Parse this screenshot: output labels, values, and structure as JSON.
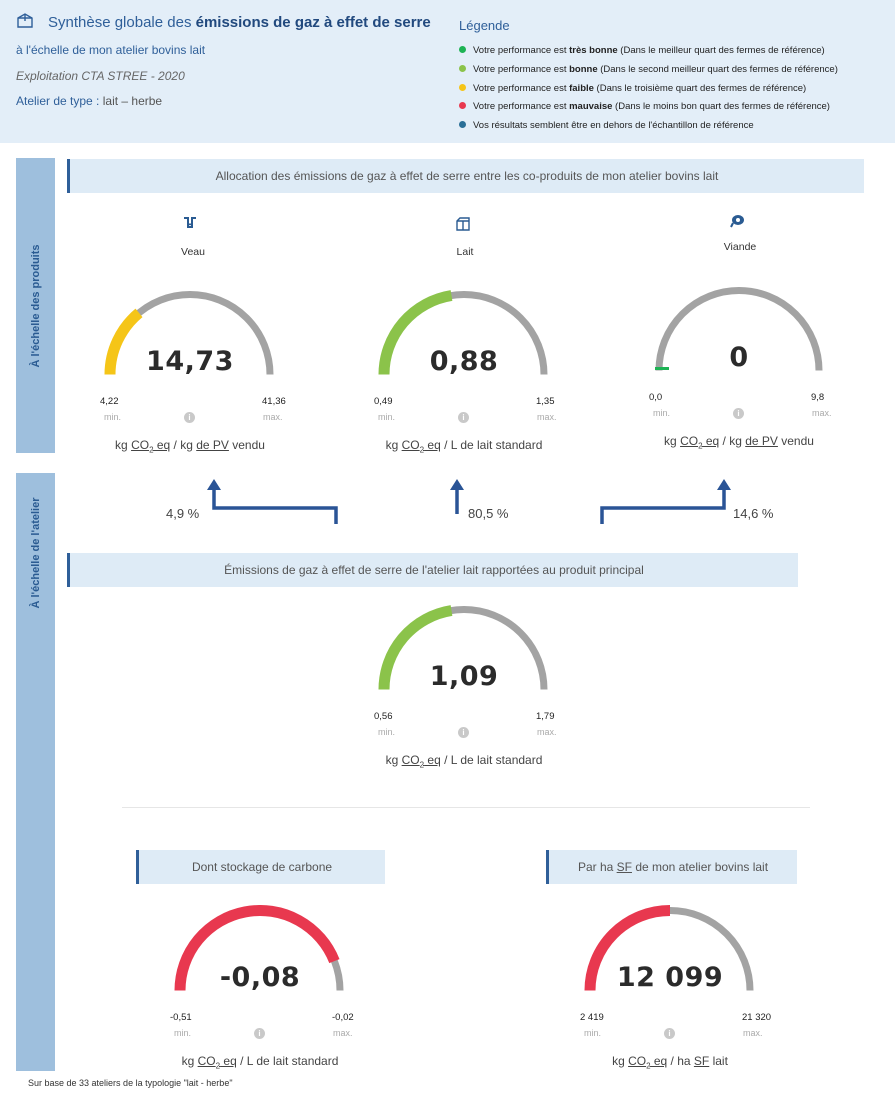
{
  "header": {
    "title_prefix": "Synthèse globale des ",
    "title_bold": "émissions de gaz à effet de serre",
    "subtitle": "à l'échelle de mon atelier bovins lait",
    "exploitation": "Exploitation CTA STREE - 2020",
    "type_label": "Atelier de type :",
    "type_value": "lait – herbe",
    "icon": "box-icon"
  },
  "legend": {
    "title": "Légende",
    "items": [
      {
        "color": "#1db354",
        "pre": "Votre performance est ",
        "bold": "très bonne",
        "post": " (Dans le meilleur quart des fermes de référence)"
      },
      {
        "color": "#8bc34a",
        "pre": "Votre performance est ",
        "bold": "bonne",
        "post": " (Dans le second meilleur quart des fermes de référence)"
      },
      {
        "color": "#f5c518",
        "pre": "Votre performance est ",
        "bold": "faible",
        "post": " (Dans le troisième quart des fermes de référence)"
      },
      {
        "color": "#e8384f",
        "pre": "Votre performance est ",
        "bold": "mauvaise",
        "post": " (Dans le moins bon quart des fermes de référence)"
      },
      {
        "color": "#2a6f97",
        "pre": "Vos résultats semblent être en dehors de l'échantillon de référence",
        "bold": "",
        "post": ""
      }
    ]
  },
  "side_labels": {
    "products": "À l'échelle des produits",
    "workshop": "À l'échelle de l'atelier"
  },
  "sections": {
    "allocation": "Allocation des émissions de gaz à effet de serre entre les co-produits de mon atelier bovins lait",
    "main_product": "Émissions de gaz à effet de serre de l'atelier lait rapportées au produit principal",
    "carbon": "Dont stockage de carbone",
    "per_ha": "Par ha SF de mon atelier bovins lait"
  },
  "products": [
    {
      "label": "Veau",
      "icon": "calf-icon",
      "value": "14,73",
      "min": "4,22",
      "max": "41,36",
      "color": "#f5c518",
      "fraction": 0.28
    },
    {
      "label": "Lait",
      "icon": "milk-carton-icon",
      "value": "0,88",
      "min": "0,49",
      "max": "1,35",
      "color": "#8bc34a",
      "fraction": 0.45
    },
    {
      "label": "Viande",
      "icon": "meat-icon",
      "value": "0",
      "min": "0,0",
      "max": "9,8",
      "color": "#1db354",
      "fraction": 0.0
    }
  ],
  "product_units": [
    {
      "pre": "kg ",
      "co2": "CO",
      "sub": "2",
      "eq": " eq",
      "mid": " / kg ",
      "pv": "de PV",
      "post": " vendu"
    },
    {
      "pre": "kg ",
      "co2": "CO",
      "sub": "2",
      "eq": " eq",
      "mid": " / L de lait standard",
      "pv": "",
      "post": ""
    },
    {
      "pre": "kg ",
      "co2": "CO",
      "sub": "2",
      "eq": " eq",
      "mid": " / kg ",
      "pv": "de PV",
      "post": " vendu"
    }
  ],
  "allocations": [
    "4,9 %",
    "80,5 %",
    "14,6 %"
  ],
  "main_gauge": {
    "value": "1,09",
    "min": "0,56",
    "max": "1,79",
    "color": "#8bc34a",
    "fraction": 0.45,
    "unit": {
      "pre": "kg ",
      "co2": "CO",
      "sub": "2",
      "eq": " eq",
      "mid": " / L de lait standard"
    }
  },
  "carbon_gauge": {
    "value": "-0,08",
    "min": "-0,51",
    "max": "-0,02",
    "color": "#e8384f",
    "fraction": 0.88,
    "unit": {
      "pre": "kg ",
      "co2": "CO",
      "sub": "2",
      "eq": " eq",
      "mid": " / L de lait standard"
    }
  },
  "ha_gauge": {
    "value": "12 099",
    "min": "2 419",
    "max": "21 320",
    "color": "#e8384f",
    "fraction": 0.5,
    "unit": {
      "pre": "kg ",
      "co2": "CO",
      "sub": "2",
      "eq": " eq",
      "mid": " / ha ",
      "sf": "SF",
      "post": " lait"
    }
  },
  "labels": {
    "min": "min.",
    "max": "max.",
    "info": "i"
  },
  "footer": "Sur base de 33 ateliers de la typologie \"lait - herbe\""
}
